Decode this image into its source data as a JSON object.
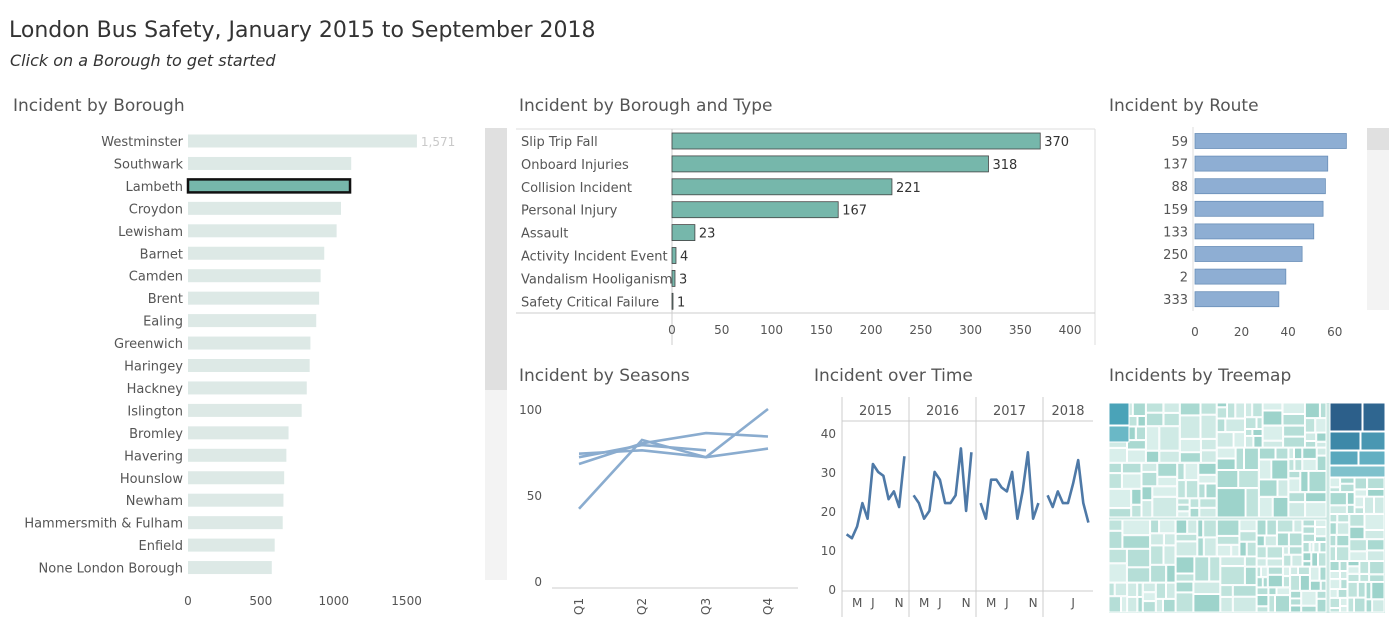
{
  "header": {
    "title": "London Bus Safety, January 2015 to September 2018",
    "subtitle": "Click on a Borough to get started"
  },
  "panels": {
    "borough": "Incident by  Borough",
    "type": "Incident by  Borough and Type",
    "route": "Incident by  Route",
    "seasons": "Incident by Seasons",
    "time": "Incident over Time",
    "treemap": "Incidents by Treemap"
  },
  "colors": {
    "teal": "#76b7ab",
    "teal_faded": "#dde9e6",
    "blue": "#8eaed3",
    "line": "#4e79a7",
    "line_light": "#8aaccf"
  },
  "chart_data": [
    {
      "id": "borough",
      "type": "bar",
      "orientation": "horizontal",
      "categories": [
        "Westminster",
        "Southwark",
        "Lambeth",
        "Croydon",
        "Lewisham",
        "Barnet",
        "Camden",
        "Brent",
        "Ealing",
        "Greenwich",
        "Haringey",
        "Hackney",
        "Islington",
        "Bromley",
        "Havering",
        "Hounslow",
        "Newham",
        "Hammersmith & Fulham",
        "Enfield",
        "None London Borough"
      ],
      "values": [
        1571,
        1120,
        1112,
        1050,
        1020,
        935,
        910,
        900,
        880,
        840,
        835,
        815,
        780,
        690,
        675,
        660,
        655,
        650,
        595,
        575
      ],
      "data_labels": {
        "Westminster": "1,571"
      },
      "selected": "Lambeth",
      "xticks": [
        0,
        500,
        1000,
        1500
      ],
      "xlim": [
        0,
        1750
      ]
    },
    {
      "id": "type",
      "type": "bar",
      "orientation": "horizontal",
      "categories": [
        "Slip Trip Fall",
        "Onboard Injuries",
        "Collision Incident",
        "Personal Injury",
        "Assault",
        "Activity Incident Event",
        "Vandalism Hooliganism",
        "Safety Critical Failure"
      ],
      "values": [
        370,
        318,
        221,
        167,
        23,
        4,
        3,
        1
      ],
      "xticks": [
        0,
        50,
        100,
        150,
        200,
        250,
        300,
        350,
        400
      ],
      "xlim": [
        0,
        420
      ]
    },
    {
      "id": "route",
      "type": "bar",
      "orientation": "horizontal",
      "categories": [
        "59",
        "137",
        "88",
        "159",
        "133",
        "250",
        "2",
        "333"
      ],
      "values": [
        65,
        57,
        56,
        55,
        51,
        46,
        39,
        36
      ],
      "xticks": [
        0,
        20,
        40,
        60
      ],
      "xlim": [
        0,
        70
      ]
    },
    {
      "id": "seasons",
      "type": "line",
      "categories": [
        "Q1",
        "Q2",
        "Q3",
        "Q4"
      ],
      "series": [
        {
          "values": [
            42,
            82,
            72,
            100
          ]
        },
        {
          "values": [
            68,
            80,
            86,
            84
          ]
        },
        {
          "values": [
            74,
            76,
            72,
            77
          ]
        },
        {
          "values": [
            72,
            79,
            76,
            null
          ]
        }
      ],
      "yticks": [
        0,
        50,
        100
      ],
      "ylim": [
        0,
        100
      ]
    },
    {
      "id": "time",
      "type": "line",
      "years": [
        "2015",
        "2016",
        "2017",
        "2018"
      ],
      "month_labels": [
        "M",
        "J",
        "N",
        "M",
        "J",
        "N",
        "M",
        "J",
        "N",
        "J"
      ],
      "segments": [
        {
          "year": "2015",
          "values": [
            14,
            13,
            16,
            22,
            18,
            32,
            30,
            29,
            23,
            25,
            21,
            34
          ]
        },
        {
          "year": "2016",
          "values": [
            24,
            22,
            18,
            20,
            30,
            28,
            22,
            22,
            24,
            36,
            20,
            35
          ]
        },
        {
          "year": "2017",
          "values": [
            22,
            18,
            28,
            28,
            26,
            25,
            30,
            18,
            25,
            35,
            18,
            22
          ]
        },
        {
          "year": "2018",
          "values": [
            24,
            21,
            25,
            22,
            22,
            27,
            33,
            22,
            17
          ]
        }
      ],
      "yticks": [
        0,
        10,
        20,
        30,
        40
      ],
      "ylim": [
        0,
        42
      ]
    },
    {
      "id": "treemap",
      "type": "treemap"
    }
  ]
}
